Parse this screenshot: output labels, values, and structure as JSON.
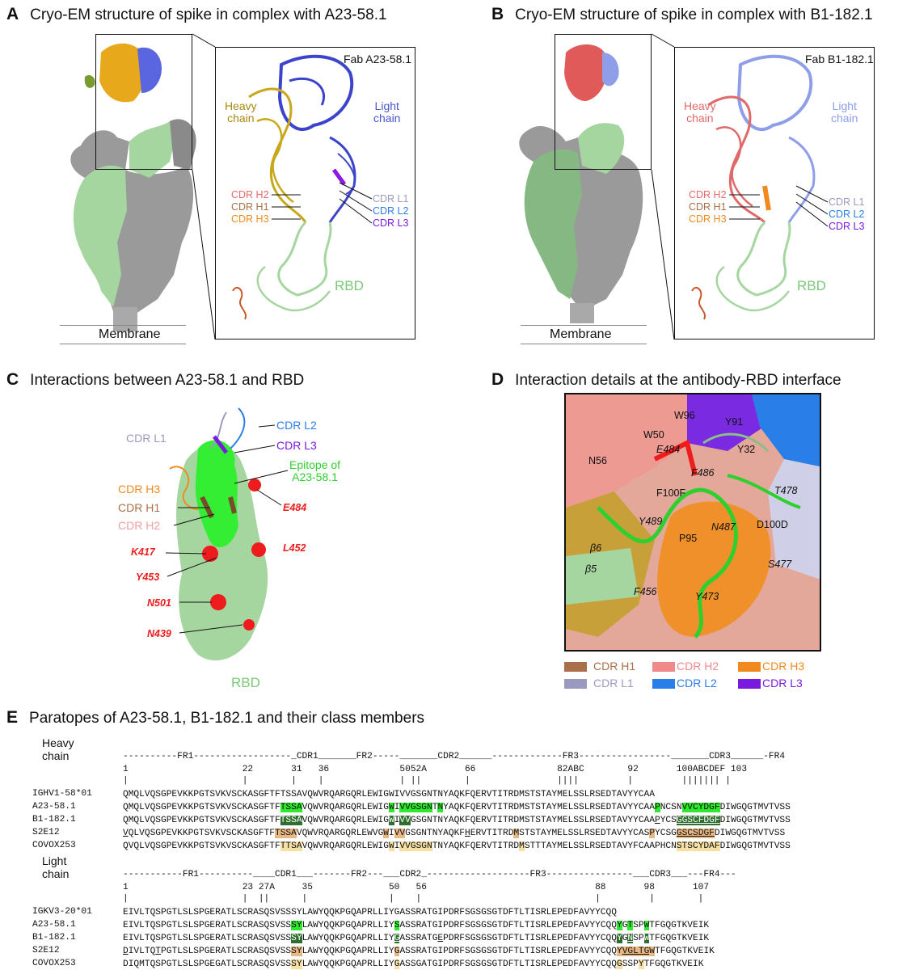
{
  "panels": {
    "A": {
      "letter": "A",
      "title": "Cryo-EM structure of spike in complex with A23-58.1",
      "fab": "Fab A23-58.1",
      "heavy": [
        "Heavy",
        "chain"
      ],
      "light": [
        "Light",
        "chain"
      ],
      "cdr_left": [
        "CDR H2",
        "CDR H1",
        "CDR H3"
      ],
      "cdr_right": [
        "CDR L1",
        "CDR L2",
        "CDR L3"
      ],
      "rbd": "RBD",
      "membrane": "Membrane"
    },
    "B": {
      "letter": "B",
      "title": "Cryo-EM structure of spike in complex with B1-182.1",
      "fab": "Fab B1-182.1",
      "heavy": [
        "Heavy",
        "chain"
      ],
      "light": [
        "Light",
        "chain"
      ],
      "cdr_left": [
        "CDR H2",
        "CDR H1",
        "CDR H3"
      ],
      "cdr_right": [
        "CDR L1",
        "CDR L2",
        "CDR L3"
      ],
      "rbd": "RBD",
      "membrane": "Membrane"
    },
    "C": {
      "letter": "C",
      "title": "Interactions between A23-58.1 and RBD",
      "labels": {
        "l1": "CDR L1",
        "l2": "CDR L2",
        "l3": "CDR L3",
        "h3": "CDR H3",
        "h1": "CDR H1",
        "h2": "CDR H2",
        "epitope": [
          "Epitope of",
          "A23-58.1"
        ],
        "rbd": "RBD"
      },
      "residues": [
        "E484",
        "K417",
        "L452",
        "Y453",
        "N501",
        "N439"
      ]
    },
    "D": {
      "letter": "D",
      "title": "Interaction details at the antibody-RBD interface",
      "residues": [
        "W96",
        "Y91",
        "W50",
        "E484",
        "Y32",
        "N56",
        "F486",
        "T478",
        "F100F",
        "Y489",
        "N487",
        "D100D",
        "P95",
        "S477",
        "F456",
        "Y473"
      ],
      "strands": [
        "β6",
        "β5"
      ],
      "legend": [
        {
          "label": "CDR H1",
          "color": "#a9704a"
        },
        {
          "label": "CDR H2",
          "color": "#f08a8a"
        },
        {
          "label": "CDR H3",
          "color": "#f08a1e"
        },
        {
          "label": "CDR L1",
          "color": "#9a9ac0"
        },
        {
          "label": "CDR L2",
          "color": "#2a7ee8"
        },
        {
          "label": "CDR L3",
          "color": "#7a1adf"
        }
      ]
    },
    "E": {
      "letter": "E",
      "title": "Paratopes of A23-58.1, B1-182.1 and their class members",
      "heavy_label": "Heavy chain",
      "light_label": "Light chain",
      "heavy_regions": "----------FR1------------------_CDR1_______FR2-----_______CDR2______-------------FR3-----------------_______CDR3______-FR4",
      "heavy_nums": "1                     22       31   36             5052A       66               82ABC        92       100ABCDEF 103",
      "heavy_ticks": "|                     |        |    |              | ||        |                ||||         |         ||||||| |",
      "light_regions": "-----------FR1----------____CDR1___-------FR2---___CDR2_-------------------FR3----------------___CDR3___---FR4---",
      "light_nums": "1                     23 27A     35              50   56                               88       98       107",
      "light_ticks": "|                     |  ||      |               |    |                                |         |        |",
      "heavy_rows": [
        {
          "name": "IGHV1-58*01",
          "seq": "QMQLVQSGPEVKKPGTSVKVSCKASGFTFTSSAVQWVRQARGQRLEWIGWIVVGSGNTNYAQKFQERVTITRDMSTSTAYMELSSLRSEDTAVYYCAA"
        },
        {
          "name": "A23-58.1",
          "seq": "QMQLVQSGPEVKKPGTSVKVSCKASGFTFTSSAVQWVRQARGQRLEWIGWIVVGSGNTNYAQKFQERVTITRDMSTSTAYMELSSLRSEDTAVYYCAAPNCSNVVCYDGFDIWGQGTMVTVSS"
        },
        {
          "name": "B1-182.1",
          "seq": "QMQLVQSGPEVKKPGTSVKVSCKASGFTFTSSAVQWVRQARGQRLEWIGWIVVGSGNTNYAQKFQERVTITRDMSTSTAYMELSSLRSEDTAVYYCAAPYCSGGSCFDGFDIWGQGTMVTVSS"
        },
        {
          "name": "S2E12",
          "seq": "QVQLVQSGPEVKKPGTSVKVSCKASGFTFTSSAVQWVRQARGQRLEWVGWIVVGSGNTNYAQKFHERVTITRDMSTSTAYMELSSLRSEDTAVYYCASPYCSGGSCSDGFDIWGQGTMVTVSS"
        },
        {
          "name": "COVOX253",
          "seq": "QVQLVQSGPEVKKPGTSVKVSCKASGFTFTTSAVQWVRQARGQRLEWIGWIVVGSGNTNYAQKFQERVTITRDMSTTTAYMELSSLRSEDTAVYFCAAPHCNSTSCYDAFDIWGQGTMVTVSS"
        }
      ],
      "light_rows": [
        {
          "name": "IGKV3-20*01",
          "seq": "EIVLTQSPGTLSLSPGERATLSCRASQSVSSSYLAWYQQKPGQAPRLLIYGASSRATGIPDRFSGSGSGTDFTLTISRLEPEDFAVYYCQQ"
        },
        {
          "name": "A23-58.1",
          "seq": "EIVLTQSPGTLSLSPGERATLSCRASQSVSSSYLAWYQQKPGQAPRLLIYSASSRATGIPDRFSGSGSGTDFTLTISRLEPEDFAVYYCQQYGTSPWTFGQGTKVEIK"
        },
        {
          "name": "B1-182.1",
          "seq": "EIVLTQSPGTLSLSPGERATLSCRASQSVSSSYLAWYQQKPGQAPRLLIYGASSRATGEPDRFSGSGSGTDFTLTISRLEPEDFAVYYCQQYGNSPWTFGQGTKVEIK"
        },
        {
          "name": "S2E12",
          "seq": "DIVLTQTPGTLSLSPGERATLSCRASQSVSSSYLAWYQQKPGQAPRLLIYGASSRATGIPDRFSGSGSGTDFTLTISRLEPEDFAVYYCQQYVGLTGWTFGQGTKVEIK"
        },
        {
          "name": "COVOX253",
          "seq": "DIQMTQSPGTLSLSPGEGATLSCRASQSVSSSYLAWYQQKPGQAPRLLIYGASSGATGIPDRFSGSGSGTDFTLTISRLEPEDFAVYYCQQGSSPYTFGQGTKVEIK"
        }
      ]
    }
  },
  "colors": {
    "rbd_green": "#a6d6a0",
    "spike_grey": "#9a9a9a",
    "epitope_green": "#33ee33",
    "heavy_a": "#c8a81a",
    "light_a": "#3c44cc",
    "heavy_b": "#e06a6a",
    "light_b": "#8f9ee8",
    "residue_red": "#ee1c1c",
    "highlight_green": "#2ee82e",
    "highlight_dark": "#2f6e2f",
    "highlight_orange": "#e8b884",
    "highlight_yellow": "#f6e0a4"
  }
}
